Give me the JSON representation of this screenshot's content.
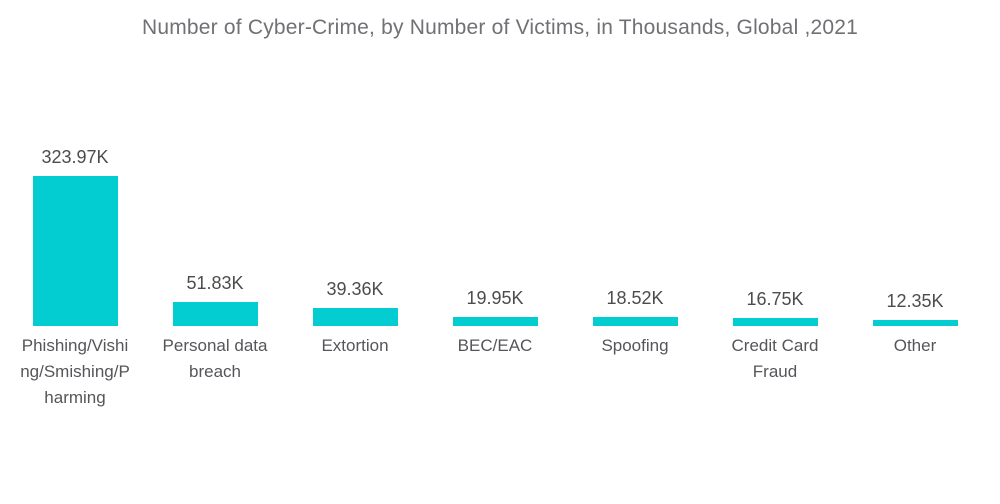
{
  "title": "Number of Cyber-Crime, by Number of Victims, in Thousands, Global ,2021",
  "colors": {
    "background": "#FFFFFF",
    "bar": "#04CDD2",
    "title_text": "#707175",
    "value_text": "#4C4C4F",
    "label_text": "#55565A"
  },
  "chart_data": {
    "type": "bar",
    "title": "Number of Cyber-Crime, by Number of Victims, in Thousands, Global ,2021",
    "categories": [
      "Phishing/Vishing/Smishing/Pharming",
      "Personal data breach",
      "Extortion",
      "BEC/EAC",
      "Spoofing",
      "Credit Card Fraud",
      "Other"
    ],
    "category_display": [
      "Phishing/Vishi\nng/Smishing/P\nharming",
      "Personal data\nbreach",
      "Extortion",
      "BEC/EAC",
      "Spoofing",
      "Credit Card\nFraud",
      "Other"
    ],
    "values": [
      323.97,
      51.83,
      39.36,
      19.95,
      18.52,
      16.75,
      12.35
    ],
    "value_labels": [
      "323.97K",
      "51.83K",
      "39.36K",
      "19.95K",
      "18.52K",
      "16.75K",
      "12.35K"
    ],
    "xlabel": "",
    "ylabel": "",
    "ylim": [
      0,
      350
    ],
    "grid": false,
    "legend": null,
    "bar_orientation": "vertical",
    "value_label_position": "above-bar",
    "axis_lines": "none"
  }
}
